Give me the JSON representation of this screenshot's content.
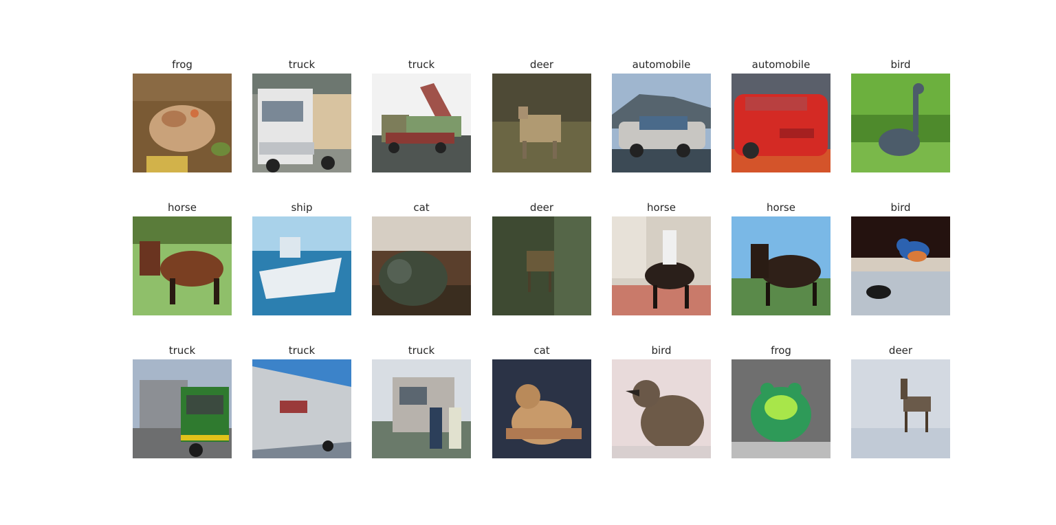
{
  "grid": {
    "rows": [
      [
        "frog",
        "truck",
        "truck",
        "deer",
        "automobile",
        "automobile",
        "bird"
      ],
      [
        "horse",
        "ship",
        "cat",
        "deer",
        "horse",
        "horse",
        "bird"
      ],
      [
        "truck",
        "truck",
        "truck",
        "cat",
        "bird",
        "frog",
        "deer"
      ]
    ]
  },
  "cells": [
    {
      "label": "frog",
      "icon": "frog-photo"
    },
    {
      "label": "truck",
      "icon": "truck-photo"
    },
    {
      "label": "truck",
      "icon": "dump-truck-photo"
    },
    {
      "label": "deer",
      "icon": "deer-photo"
    },
    {
      "label": "automobile",
      "icon": "car-photo"
    },
    {
      "label": "automobile",
      "icon": "red-car-photo"
    },
    {
      "label": "bird",
      "icon": "bird-photo"
    },
    {
      "label": "horse",
      "icon": "horse-photo"
    },
    {
      "label": "ship",
      "icon": "ship-photo"
    },
    {
      "label": "cat",
      "icon": "cat-photo"
    },
    {
      "label": "deer",
      "icon": "deer-photo"
    },
    {
      "label": "horse",
      "icon": "horse-rider-photo"
    },
    {
      "label": "horse",
      "icon": "horse-photo"
    },
    {
      "label": "bird",
      "icon": "bluebird-photo"
    },
    {
      "label": "truck",
      "icon": "green-truck-photo"
    },
    {
      "label": "truck",
      "icon": "trailer-truck-photo"
    },
    {
      "label": "truck",
      "icon": "truck-people-photo"
    },
    {
      "label": "cat",
      "icon": "cat-photo"
    },
    {
      "label": "bird",
      "icon": "bird-closeup-photo"
    },
    {
      "label": "frog",
      "icon": "frog-statue-photo"
    },
    {
      "label": "deer",
      "icon": "deer-snow-photo"
    }
  ]
}
